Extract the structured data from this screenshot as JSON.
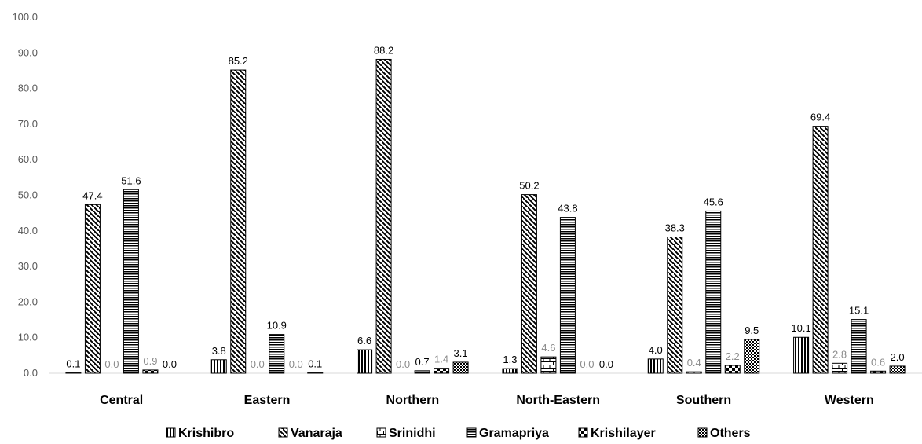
{
  "chart_data": {
    "type": "bar",
    "title": "",
    "xlabel": "",
    "ylabel": "",
    "ylim": [
      0,
      100
    ],
    "yticks": [
      "0.0",
      "10.0",
      "20.0",
      "30.0",
      "40.0",
      "50.0",
      "60.0",
      "70.0",
      "80.0",
      "90.0",
      "100.0"
    ],
    "grid": false,
    "legend_position": "bottom",
    "categories": [
      "Central",
      "Eastern",
      "Northern",
      "North-Eastern",
      "Southern",
      "Western"
    ],
    "series": [
      {
        "name": "Krishibro",
        "pattern": "vertical-lines",
        "values": [
          0.1,
          3.8,
          6.6,
          1.3,
          4.0,
          10.1
        ],
        "labels": [
          "0.1",
          "3.8",
          "6.6",
          "1.3",
          "4.0",
          "10.1"
        ]
      },
      {
        "name": "Vanaraja",
        "pattern": "diagonal-lines",
        "values": [
          47.4,
          85.2,
          88.2,
          50.2,
          38.3,
          69.4
        ],
        "labels": [
          "47.4",
          "85.2",
          "88.2",
          "50.2",
          "38.3",
          "69.4"
        ]
      },
      {
        "name": "Srinidhi",
        "pattern": "brick",
        "values": [
          0.0,
          0.0,
          0.0,
          4.6,
          0.4,
          2.8
        ],
        "labels": [
          "0.0",
          "0.0",
          "0.0",
          "4.6",
          "0.4",
          "2.8"
        ]
      },
      {
        "name": "Gramapriya",
        "pattern": "horizontal-lines",
        "values": [
          51.6,
          10.9,
          0.7,
          43.8,
          45.6,
          15.1
        ],
        "labels": [
          "51.6",
          "10.9",
          "0.7",
          "43.8",
          "45.6",
          "15.1"
        ]
      },
      {
        "name": "Krishilayer",
        "pattern": "large-checker",
        "values": [
          0.9,
          0.0,
          1.4,
          0.0,
          2.2,
          0.6
        ],
        "labels": [
          "0.9",
          "0.0",
          "1.4",
          "0.0",
          "2.2",
          "0.6"
        ]
      },
      {
        "name": "Others",
        "pattern": "small-checker",
        "values": [
          0.0,
          0.1,
          3.1,
          0.0,
          9.5,
          2.0
        ],
        "labels": [
          "0.0",
          "0.1",
          "3.1",
          "0.0",
          "9.5",
          "2.0"
        ]
      }
    ]
  }
}
